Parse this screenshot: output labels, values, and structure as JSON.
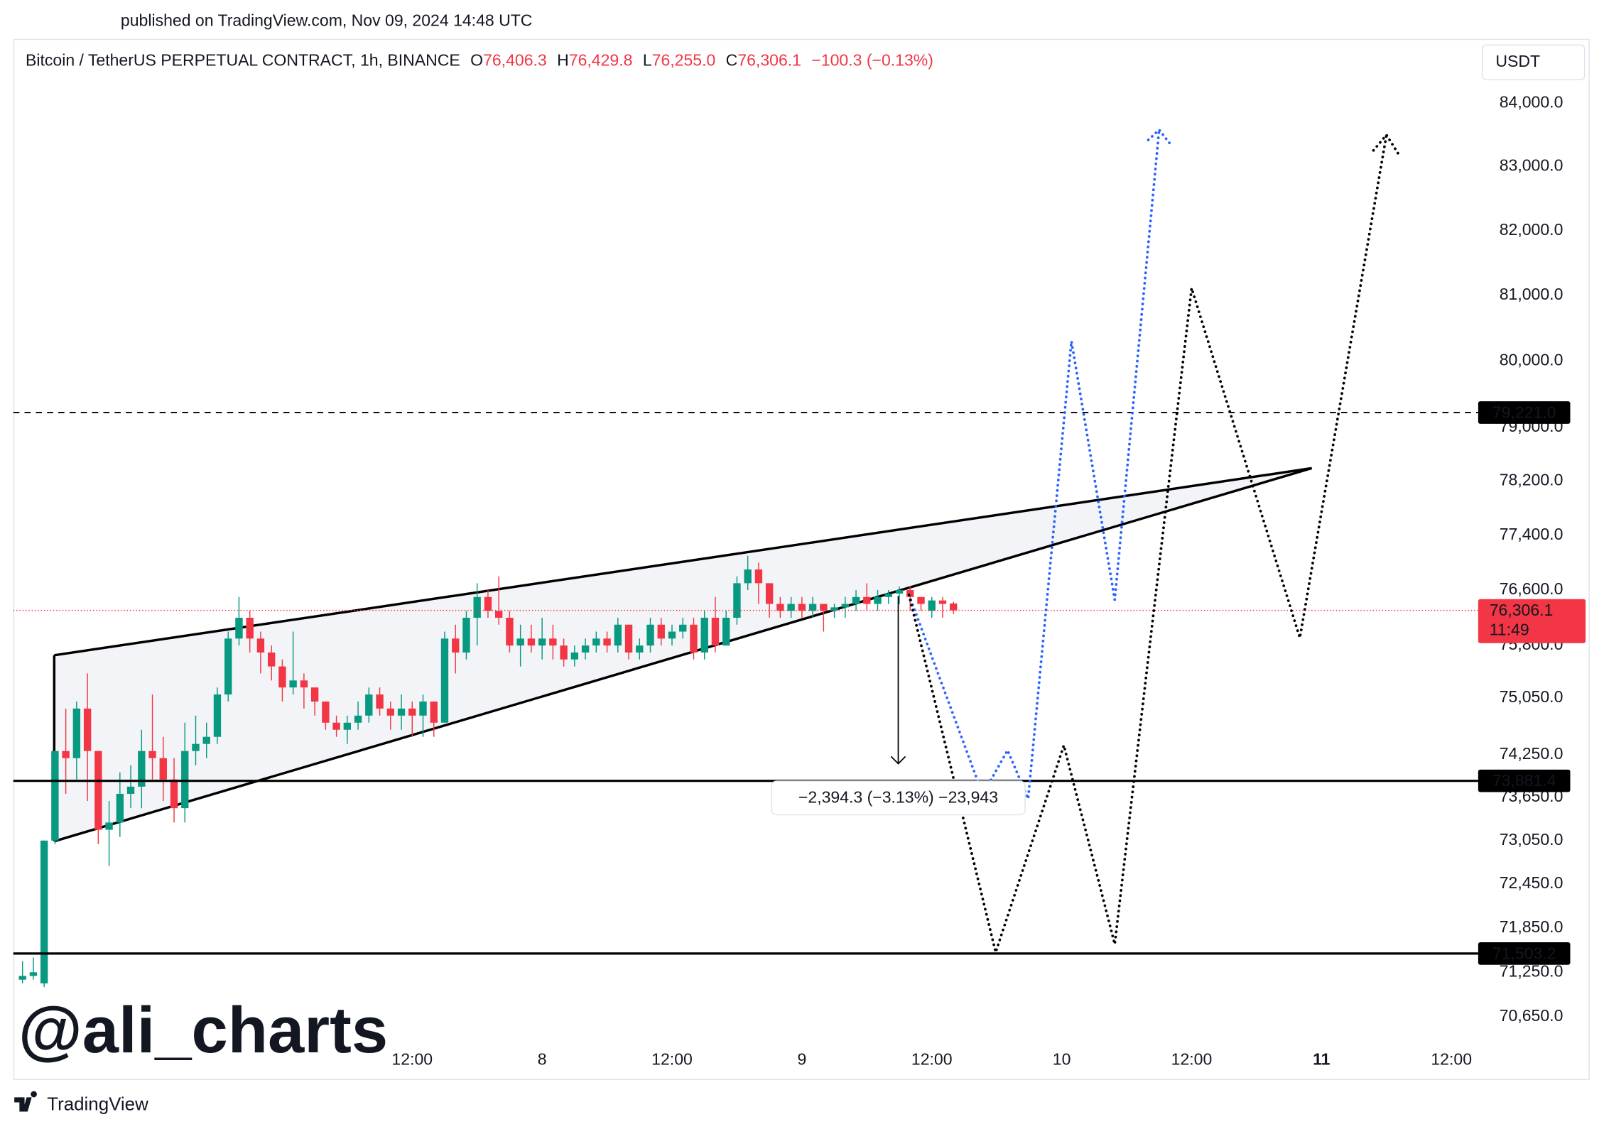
{
  "chart_data": {
    "type": "candlestick",
    "published": "published on TradingView.com, Nov 09, 2024 14:48 UTC",
    "title": "Bitcoin / TetherUS PERPETUAL CONTRACT, 1h, BINANCE",
    "ohlc": [
      {
        "key": "O",
        "text": "76,406.3"
      },
      {
        "key": "H",
        "text": "76,429.8"
      },
      {
        "key": "L",
        "text": "76,255.0"
      },
      {
        "key": "C",
        "text": "76,306.1"
      }
    ],
    "change": "−100.3 (−0.13%)",
    "currency": "USDT",
    "watermark": "@ali_charts",
    "footer": "TradingView",
    "log_scale": true,
    "grid": false,
    "up_color": "#089981",
    "down_color": "#f23645",
    "xlim": [
      -0.85,
      134
    ],
    "ylim": [
      70300,
      85000
    ],
    "yticks": [
      {
        "value": 84000,
        "label": "84,000.0"
      },
      {
        "value": 83000,
        "label": "83,000.0"
      },
      {
        "value": 82000,
        "label": "82,000.0"
      },
      {
        "value": 81000,
        "label": "81,000.0"
      },
      {
        "value": 80000,
        "label": "80,000.0"
      },
      {
        "value": 79000,
        "label": "79,000.0"
      },
      {
        "value": 78200,
        "label": "78,200.0"
      },
      {
        "value": 77400,
        "label": "77,400.0"
      },
      {
        "value": 76600,
        "label": "76,600.0"
      },
      {
        "value": 75800,
        "label": "75,800.0"
      },
      {
        "value": 75050,
        "label": "75,050.0"
      },
      {
        "value": 74250,
        "label": "74,250.0"
      },
      {
        "value": 73650,
        "label": "73,650.0"
      },
      {
        "value": 73050,
        "label": "73,050.0"
      },
      {
        "value": 72450,
        "label": "72,450.0"
      },
      {
        "value": 71850,
        "label": "71,850.0"
      },
      {
        "value": 71250,
        "label": "71,250.0"
      },
      {
        "value": 70650,
        "label": "70,650.0"
      }
    ],
    "xticks": [
      {
        "value": 36,
        "label": "12:00"
      },
      {
        "value": 48,
        "label": "8"
      },
      {
        "value": 60,
        "label": "12:00"
      },
      {
        "value": 72,
        "label": "9"
      },
      {
        "value": 84,
        "label": "12:00"
      },
      {
        "value": 96,
        "label": "10"
      },
      {
        "value": 108,
        "label": "12:00"
      },
      {
        "value": 120,
        "label": "11",
        "bold": true
      },
      {
        "value": 132,
        "label": "12:00"
      }
    ],
    "x": [
      0,
      1,
      2,
      3,
      4,
      5,
      6,
      7,
      8,
      9,
      10,
      11,
      12,
      13,
      14,
      15,
      16,
      17,
      18,
      19,
      20,
      21,
      22,
      23,
      24,
      25,
      26,
      27,
      28,
      29,
      30,
      31,
      32,
      33,
      34,
      35,
      36,
      37,
      38,
      39,
      40,
      41,
      42,
      43,
      44,
      45,
      46,
      47,
      48,
      49,
      50,
      51,
      52,
      53,
      54,
      55,
      56,
      57,
      58,
      59,
      60,
      61,
      62,
      63,
      64,
      65,
      66,
      67,
      68,
      69,
      70,
      71,
      72,
      73,
      74,
      75,
      76,
      77,
      78,
      79,
      80,
      81,
      82,
      83,
      84,
      85,
      86
    ],
    "candles": [
      [
        71150,
        71400,
        71100,
        71200
      ],
      [
        71200,
        71450,
        71150,
        71250
      ],
      [
        71100,
        73050,
        71050,
        73050
      ],
      [
        73050,
        74300,
        73000,
        74300
      ],
      [
        74300,
        74900,
        73700,
        74200
      ],
      [
        74200,
        75000,
        73900,
        74900
      ],
      [
        74900,
        75400,
        73600,
        74300
      ],
      [
        74300,
        74300,
        73000,
        73200
      ],
      [
        73200,
        73600,
        72700,
        73300
      ],
      [
        73300,
        74000,
        73100,
        73700
      ],
      [
        73700,
        74100,
        73500,
        73800
      ],
      [
        73800,
        74600,
        73500,
        74300
      ],
      [
        74300,
        75100,
        73900,
        74200
      ],
      [
        74200,
        74500,
        73600,
        73900
      ],
      [
        73900,
        74200,
        73300,
        73500
      ],
      [
        73500,
        74700,
        73300,
        74300
      ],
      [
        74300,
        74800,
        74100,
        74400
      ],
      [
        74400,
        74700,
        74200,
        74500
      ],
      [
        74500,
        75200,
        74400,
        75100
      ],
      [
        75100,
        76000,
        75000,
        75900
      ],
      [
        75900,
        76500,
        75800,
        76200
      ],
      [
        76200,
        76300,
        75700,
        75900
      ],
      [
        75900,
        76000,
        75400,
        75700
      ],
      [
        75700,
        75800,
        75300,
        75500
      ],
      [
        75500,
        75600,
        75000,
        75200
      ],
      [
        75200,
        76000,
        75100,
        75300
      ],
      [
        75300,
        75400,
        74900,
        75200
      ],
      [
        75200,
        75200,
        74800,
        75000
      ],
      [
        75000,
        75000,
        74600,
        74700
      ],
      [
        74700,
        74800,
        74500,
        74600
      ],
      [
        74600,
        74800,
        74400,
        74700
      ],
      [
        74700,
        75000,
        74600,
        74800
      ],
      [
        74800,
        75200,
        74700,
        75100
      ],
      [
        75100,
        75200,
        74800,
        74900
      ],
      [
        74900,
        75000,
        74600,
        74800
      ],
      [
        74800,
        75100,
        74600,
        74900
      ],
      [
        74900,
        75000,
        74500,
        74800
      ],
      [
        74800,
        75100,
        74500,
        75000
      ],
      [
        75000,
        75000,
        74500,
        74700
      ],
      [
        74700,
        76000,
        74700,
        75900
      ],
      [
        75900,
        76100,
        75400,
        75700
      ],
      [
        75700,
        76300,
        75600,
        76200
      ],
      [
        76200,
        76700,
        75800,
        76500
      ],
      [
        76500,
        76600,
        76200,
        76300
      ],
      [
        76300,
        76800,
        76100,
        76200
      ],
      [
        76200,
        76300,
        75700,
        75800
      ],
      [
        75800,
        76100,
        75500,
        75900
      ],
      [
        75900,
        76100,
        75700,
        75800
      ],
      [
        75800,
        76200,
        75600,
        75900
      ],
      [
        75900,
        76100,
        75600,
        75800
      ],
      [
        75800,
        75900,
        75500,
        75600
      ],
      [
        75600,
        75800,
        75500,
        75700
      ],
      [
        75700,
        75900,
        75600,
        75800
      ],
      [
        75800,
        76000,
        75700,
        75900
      ],
      [
        75900,
        76000,
        75700,
        75800
      ],
      [
        75800,
        76200,
        75700,
        76100
      ],
      [
        76100,
        76100,
        75600,
        75700
      ],
      [
        75700,
        75900,
        75600,
        75800
      ],
      [
        75800,
        76200,
        75700,
        76100
      ],
      [
        76100,
        76200,
        75800,
        75900
      ],
      [
        75900,
        76100,
        75800,
        76000
      ],
      [
        76000,
        76200,
        75900,
        76100
      ],
      [
        76100,
        76200,
        75600,
        75700
      ],
      [
        75700,
        76300,
        75600,
        76200
      ],
      [
        76200,
        76500,
        75700,
        75800
      ],
      [
        75800,
        76300,
        75800,
        76200
      ],
      [
        76200,
        76800,
        76100,
        76700
      ],
      [
        76700,
        77100,
        76600,
        76900
      ],
      [
        76900,
        77000,
        76400,
        76700
      ],
      [
        76700,
        76700,
        76200,
        76400
      ],
      [
        76400,
        76500,
        76200,
        76300
      ],
      [
        76300,
        76500,
        76200,
        76400
      ],
      [
        76400,
        76500,
        76200,
        76300
      ],
      [
        76300,
        76500,
        76200,
        76400
      ],
      [
        76400,
        76400,
        76000,
        76300
      ],
      [
        76300,
        76400,
        76200,
        76350
      ],
      [
        76350,
        76500,
        76200,
        76400
      ],
      [
        76400,
        76600,
        76300,
        76500
      ],
      [
        76500,
        76700,
        76300,
        76400
      ],
      [
        76400,
        76600,
        76300,
        76500
      ],
      [
        76500,
        76600,
        76400,
        76550
      ],
      [
        76550,
        76650,
        76400,
        76600
      ],
      [
        76600,
        76650,
        76300,
        76500
      ],
      [
        76500,
        76500,
        76300,
        76400
      ],
      [
        76300,
        76500,
        76200,
        76450
      ],
      [
        76450,
        76500,
        76200,
        76400
      ],
      [
        76406.3,
        76429.8,
        76255.0,
        76306.1
      ]
    ],
    "levels": [
      {
        "value": 79221,
        "label": "79,221.0",
        "style": "dashed"
      },
      {
        "value": 73881.4,
        "label": "73,881.4",
        "style": "solid"
      },
      {
        "value": 71503.2,
        "label": "71,503.2",
        "style": "solid"
      }
    ],
    "last_price": {
      "value": 76306.1,
      "label": "76,306.1",
      "countdown": "11:49"
    },
    "wedge": {
      "upper": [
        [
          2.93,
          75660
        ],
        [
          119.1,
          78390
        ]
      ],
      "lower": [
        [
          2.93,
          73040
        ],
        [
          119.1,
          78390
        ]
      ]
    },
    "projections": [
      {
        "color": "#2962ff",
        "points": [
          [
            81.9,
            76530
          ],
          [
            88.7,
            73690
          ],
          [
            91,
            74310
          ],
          [
            92.9,
            73630
          ],
          [
            96.9,
            80300
          ],
          [
            100.9,
            76460
          ],
          [
            105,
            83580
          ]
        ],
        "head": [
          [
            104,
            83420
          ],
          [
            105,
            83580
          ],
          [
            106.1,
            83340
          ]
        ]
      },
      {
        "color": "#000000",
        "points": [
          [
            81.9,
            76530
          ],
          [
            89.9,
            71520
          ],
          [
            96.2,
            74380
          ],
          [
            100.9,
            71630
          ],
          [
            108,
            81110
          ],
          [
            118,
            75910
          ],
          [
            126,
            83500
          ]
        ],
        "head": [
          [
            124.8,
            83255
          ],
          [
            126,
            83500
          ],
          [
            127.1,
            83200
          ]
        ]
      }
    ],
    "measure": {
      "x": 80.9,
      "from": 76516,
      "to": 74122,
      "label": "−2,394.3 (−3.13%) −23,943"
    }
  }
}
